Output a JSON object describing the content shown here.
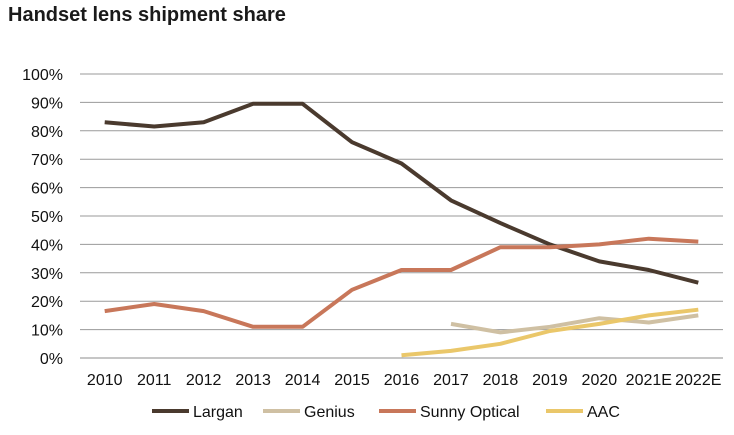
{
  "chart_data": {
    "type": "line",
    "title": "Handset lens shipment share",
    "xlabel": "",
    "ylabel": "",
    "ylim": [
      0,
      100
    ],
    "yticks": [
      "0%",
      "10%",
      "20%",
      "30%",
      "40%",
      "50%",
      "60%",
      "70%",
      "80%",
      "90%",
      "100%"
    ],
    "categories": [
      "2010",
      "2011",
      "2012",
      "2013",
      "2014",
      "2015",
      "2016",
      "2017",
      "2018",
      "2019",
      "2020",
      "2021E",
      "2022E"
    ],
    "grid": true,
    "legend": "bottom",
    "series": [
      {
        "name": "Largan",
        "color": "#4a3a2e",
        "values": [
          83,
          81.5,
          83,
          89.5,
          89.5,
          76,
          68.5,
          55.5,
          47.5,
          40,
          34,
          31,
          26.5
        ]
      },
      {
        "name": "Genius",
        "color": "#cfc0a3",
        "values": [
          null,
          null,
          null,
          null,
          null,
          null,
          null,
          12,
          9,
          11,
          14,
          12.5,
          15
        ]
      },
      {
        "name": "Sunny Optical",
        "color": "#c8775a",
        "values": [
          16.5,
          19,
          16.5,
          11,
          11,
          24,
          31,
          31,
          39,
          39,
          40,
          42,
          41
        ]
      },
      {
        "name": "AAC",
        "color": "#eac76a",
        "values": [
          null,
          null,
          null,
          null,
          null,
          null,
          1,
          2.5,
          5,
          9.5,
          12,
          15,
          17
        ]
      }
    ]
  }
}
